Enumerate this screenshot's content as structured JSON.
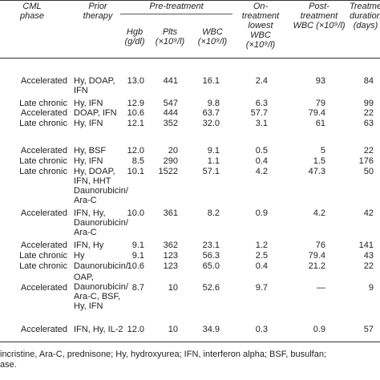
{
  "headers": {
    "cml_phase": [
      "CML",
      "phase"
    ],
    "prior_therapy": [
      "Prior",
      "therapy"
    ],
    "pre_treatment": "Pre-treatment",
    "hgb": [
      "Hgb",
      "(g/dl)"
    ],
    "plts": [
      "Plts",
      "(×10⁹/l)"
    ],
    "wbc": [
      "WBC",
      "(×10⁹/l)"
    ],
    "on_treatment": [
      "On-",
      "treatment",
      "lowest",
      "WBC",
      "(×10⁹/l)"
    ],
    "post_treatment": [
      "Post-",
      "treatment",
      "WBC (×10⁹/l)"
    ],
    "duration": [
      "Treatme",
      "duration",
      "(days)"
    ]
  },
  "rows": [
    {
      "phase": "Accelerated",
      "therapy": [
        "Hy, DOAP,",
        "IFN"
      ],
      "hgb": "13.0",
      "plts": "441",
      "wbc": "16.1",
      "lowest": "2.4",
      "post": "93",
      "dur": "84"
    },
    {
      "phase": "Late chronic",
      "therapy": [
        "Hy, IFN"
      ],
      "hgb": "12.9",
      "plts": "547",
      "wbc": "9.8",
      "lowest": "6.3",
      "post": "79",
      "dur": "99"
    },
    {
      "phase": "Accelerated",
      "therapy": [
        "DOAP, IFN"
      ],
      "hgb": "10.6",
      "plts": "444",
      "wbc": "63.7",
      "lowest": "57.7",
      "post": "79.4",
      "dur": "22"
    },
    {
      "phase": "Late chronic",
      "therapy": [
        "Hy, IFN"
      ],
      "hgb": "12.1",
      "plts": "352",
      "wbc": "32.0",
      "lowest": "3.1",
      "post": "61",
      "dur": "63"
    },
    {
      "phase": "Accelerated",
      "therapy": [
        "Hy, BSF"
      ],
      "hgb": "12.0",
      "plts": "20",
      "wbc": "9.1",
      "lowest": "0.5",
      "post": "5",
      "dur": "22"
    },
    {
      "phase": "Late chronic",
      "therapy": [
        "Hy, IFN"
      ],
      "hgb": "8.5",
      "plts": "290",
      "wbc": "1.1",
      "lowest": "0.4",
      "post": "1.5",
      "dur": "176"
    },
    {
      "phase": "Late chronic",
      "therapy": [
        "Hy, DOAP,",
        "IFN, HHT",
        "Daunorubicin/",
        "Ara-C"
      ],
      "hgb": "10.1",
      "plts": "1522",
      "wbc": "57.1",
      "lowest": "4.2",
      "post": "47.3",
      "dur": "50"
    },
    {
      "phase": "Accelerated",
      "therapy": [
        "IFN, Hy,",
        "Daunorubicin/",
        "Ara-C"
      ],
      "hgb": "10.0",
      "plts": "361",
      "wbc": "8.2",
      "lowest": "0.9",
      "post": "4.2",
      "dur": "42"
    },
    {
      "phase": "Accelerated",
      "therapy": [
        "IFN, Hy"
      ],
      "hgb": "9.1",
      "plts": "362",
      "wbc": "23.1",
      "lowest": "1.2",
      "post": "76",
      "dur": "141"
    },
    {
      "phase": "Late chronic",
      "therapy": [
        "Hy"
      ],
      "hgb": "9.1",
      "plts": "123",
      "wbc": "56.3",
      "lowest": "2.5",
      "post": "79.4",
      "dur": "43"
    },
    {
      "phase": "Late chronic",
      "therapy": [
        "Daunorubicin/"
      ],
      "hgb": "10.6",
      "plts": "123",
      "wbc": "65.0",
      "lowest": "0.4",
      "post": "21.2",
      "dur": "22"
    },
    {
      "phase": "Accelerated",
      "therapy": [
        "OAP,",
        "Daunorubicin/",
        "Ara-C, BSF,",
        "Hy, IFN"
      ],
      "hgb": "8.7",
      "plts": "10",
      "wbc": "52.6",
      "lowest": "9.7",
      "post": "—",
      "dur": "9"
    },
    {
      "phase": "Accelerated",
      "therapy": [
        "IFN, Hy, IL-2"
      ],
      "hgb": "12.0",
      "plts": "10",
      "wbc": "34.9",
      "lowest": "0.3",
      "post": "0.9",
      "dur": "57"
    }
  ],
  "footnote": [
    "incristine, Ara-C, prednisone; Hy, hydroxyurea; IFN, interferon alpha; BSF, busulfan;",
    "ase."
  ]
}
